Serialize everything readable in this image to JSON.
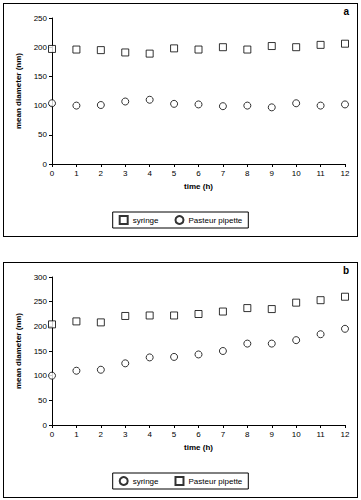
{
  "chart_data": [
    {
      "type": "scatter",
      "annotation": "a",
      "x_label": "time (h)",
      "y_label": "mean diameter (nm)",
      "x": [
        0,
        1,
        2,
        3,
        4,
        5,
        6,
        7,
        8,
        9,
        10,
        11,
        12
      ],
      "series": [
        {
          "name": "syringe",
          "marker": "square",
          "color": "#000000",
          "values": [
            197,
            196,
            195,
            191,
            189,
            198,
            196,
            200,
            196,
            202,
            200,
            204,
            206
          ]
        },
        {
          "name": "Pasteur pipette",
          "marker": "circle",
          "color": "#000000",
          "values": [
            104,
            100,
            101,
            107,
            110,
            103,
            102,
            99,
            100,
            97,
            104,
            100,
            102
          ]
        }
      ],
      "xlim": [
        0,
        12
      ],
      "xticks": [
        0,
        1,
        2,
        3,
        4,
        5,
        6,
        7,
        8,
        9,
        10,
        11,
        12
      ],
      "ylim": [
        0,
        250
      ],
      "yticks": [
        0,
        50,
        100,
        150,
        200,
        250
      ],
      "grid": false,
      "legend": "bottom"
    },
    {
      "type": "scatter",
      "annotation": "b",
      "x_label": "time (h)",
      "y_label": "mean diameter (nm)",
      "x": [
        0,
        1,
        2,
        3,
        4,
        5,
        6,
        7,
        8,
        9,
        10,
        11,
        12
      ],
      "series": [
        {
          "name": "syringe",
          "marker": "circle",
          "color": "#000000",
          "values": [
            100,
            110,
            112,
            125,
            137,
            138,
            143,
            150,
            165,
            165,
            172,
            184,
            195
          ]
        },
        {
          "name": "Pasteur pipette",
          "marker": "square",
          "color": "#000000",
          "values": [
            204,
            210,
            208,
            221,
            222,
            222,
            225,
            230,
            237,
            235,
            248,
            253,
            260
          ]
        }
      ],
      "xlim": [
        0,
        12
      ],
      "xticks": [
        0,
        1,
        2,
        3,
        4,
        5,
        6,
        7,
        8,
        9,
        10,
        11,
        12
      ],
      "ylim": [
        0,
        300
      ],
      "yticks": [
        0,
        50,
        100,
        150,
        200,
        250,
        300
      ],
      "grid": false,
      "legend": "bottom"
    }
  ]
}
